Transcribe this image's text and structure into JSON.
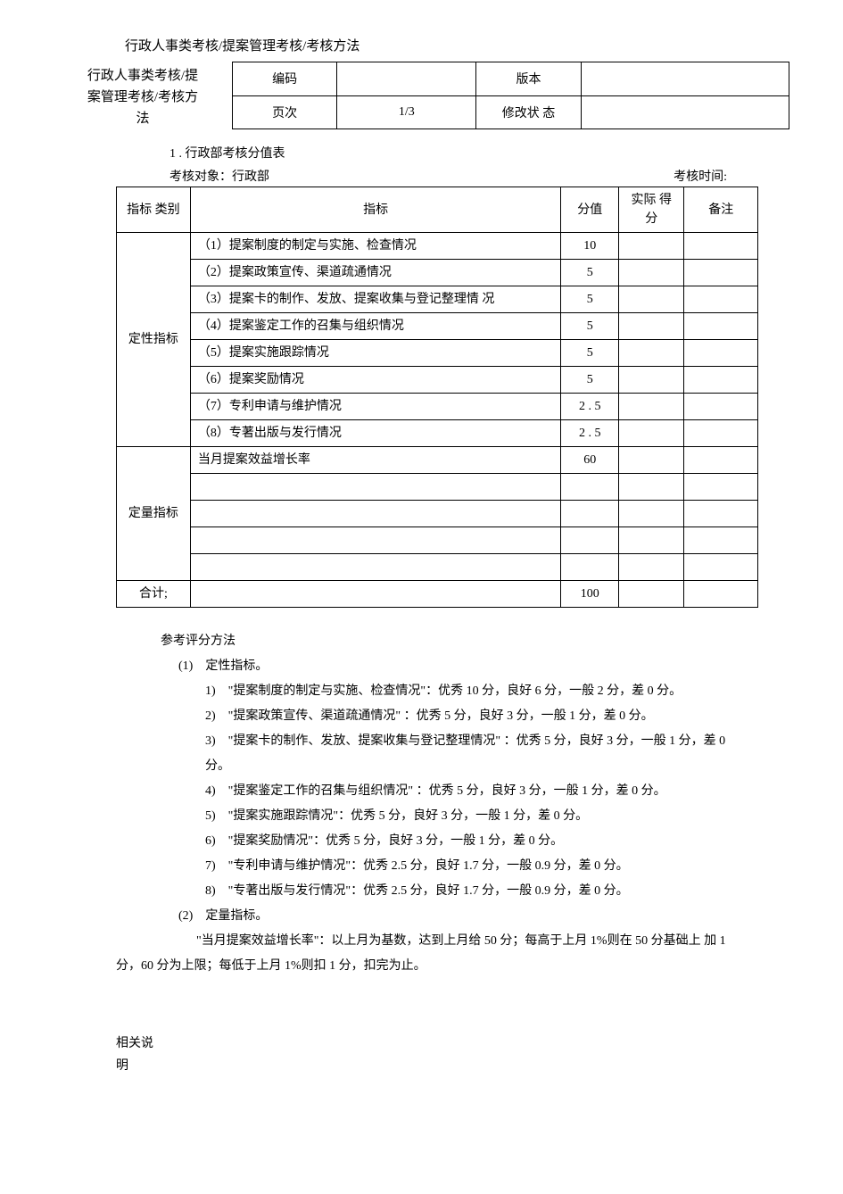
{
  "title": "行政人事类考核/提案管理考核/考核方法",
  "header": {
    "left_line1": "行政人事类考核/提",
    "left_line2": "案管理考核/考核方",
    "left_line3": "法",
    "code_label": "编码",
    "code_value": "",
    "version_label": "版本",
    "version_value": "",
    "page_label": "页次",
    "page_value": "1/3",
    "rev_label": "修改状 态",
    "rev_value": ""
  },
  "section1_title": "1 . 行政部考核分值表",
  "meta": {
    "target_label": "考核对象：行政部",
    "time_label": "考核时间:"
  },
  "table": {
    "head": {
      "category": "指标 类别",
      "indicator": "指标",
      "score": "分值",
      "actual": "实际 得分",
      "note": "备注"
    },
    "qual_label": "定性指标",
    "quant_label": "定量指标",
    "total_label": "合计;",
    "qual_rows": [
      {
        "text": "（1）提案制度的制定与实施、检查情况",
        "score": "10"
      },
      {
        "text": "（2）提案政策宣传、渠道疏通情况",
        "score": "5"
      },
      {
        "text": "（3）提案卡的制作、发放、提案收集与登记整理情 况",
        "score": "5"
      },
      {
        "text": "（4）提案鉴定工作的召集与组织情况",
        "score": "5"
      },
      {
        "text": "（5）提案实施跟踪情况",
        "score": "5"
      },
      {
        "text": "（6）提案奖励情况",
        "score": "5"
      },
      {
        "text": "（7）专利申请与维护情况",
        "score": "2 . 5"
      },
      {
        "text": "（8）专著出版与发行情况",
        "score": "2 . 5"
      }
    ],
    "quant_rows": [
      {
        "text": "当月提案效益增长率",
        "score": "60"
      },
      {
        "text": "",
        "score": ""
      },
      {
        "text": "",
        "score": ""
      },
      {
        "text": "",
        "score": ""
      },
      {
        "text": "",
        "score": ""
      }
    ],
    "total_score": "100"
  },
  "methods": {
    "title": "参考评分方法",
    "sec1_title": "(1)　定性指标。",
    "sec1_items": [
      "1)　\"提案制度的制定与实施、检查情况\"：优秀 10 分，良好 6 分，一般 2 分，差 0 分。",
      "2)　\"提案政策宣传、渠道疏通情况\" ：优秀 5 分，良好 3 分，一般 1 分，差 0 分。",
      "3)　\"提案卡的制作、发放、提案收集与登记整理情况\" ：优秀 5 分，良好 3 分，一般 1 分，差 0 分。",
      "4)　\"提案鉴定工作的召集与组织情况\" ：优秀 5 分，良好 3 分，一般 1 分，差 0 分。",
      "5)　\"提案实施跟踪情况\"：优秀 5 分，良好 3 分，一般 1 分，差 0 分。",
      "6)　\"提案奖励情况\"：优秀 5 分，良好 3 分，一般 1 分，差 0 分。",
      "7)　\"专利申请与维护情况\"：优秀 2.5 分，良好 1.7 分，一般 0.9 分，差 0 分。",
      "8)　\"专著出版与发行情况\"：优秀 2.5 分，良好 1.7 分，一般 0.9 分，差 0 分。"
    ],
    "sec2_title": "(2)　定量指标。",
    "sec2_para": "\"当月提案效益增长率\"：以上月为基数，达到上月给 50 分；每高于上月 1%则在 50 分基础上 加 1 分，60 分为上限；每低于上月 1%则扣 1 分，扣完为止。"
  },
  "footer": {
    "line1": "相关说",
    "line2": "明"
  }
}
